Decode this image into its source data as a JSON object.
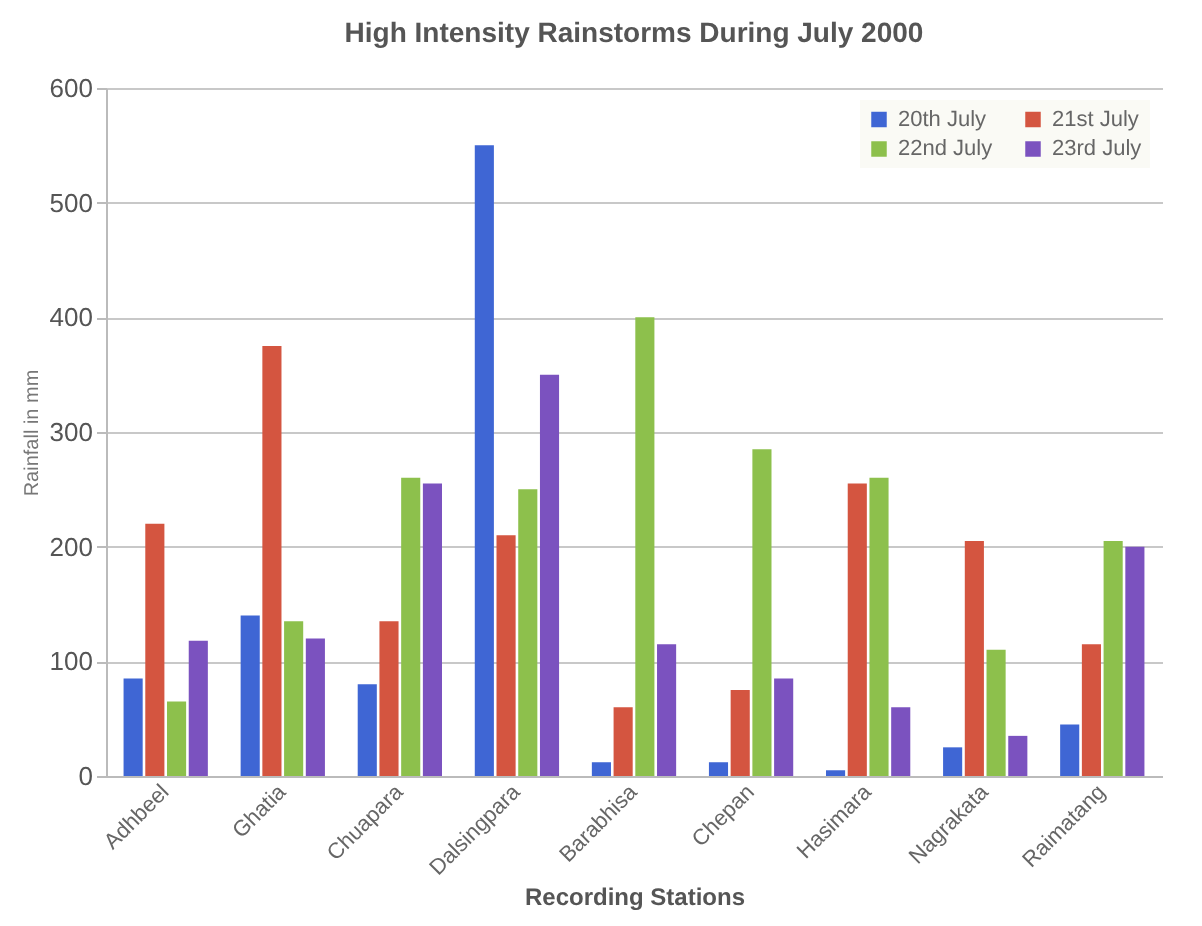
{
  "chart_data": {
    "type": "bar",
    "title": "High Intensity Rainstorms During July 2000",
    "xlabel": "Recording Stations",
    "ylabel": "Rainfall in mm",
    "categories": [
      "Adhbeel",
      "Ghatia",
      "Chuapara",
      "Dalsingpara",
      "Barabhisa",
      "Chepan",
      "Hasimara",
      "Nagrakata",
      "Raimatang"
    ],
    "series": [
      {
        "name": "20th July",
        "color": "#3f66d4",
        "values": [
          85,
          140,
          80,
          550,
          12,
          12,
          5,
          25,
          45
        ]
      },
      {
        "name": "21st July",
        "color": "#d45540",
        "values": [
          220,
          375,
          135,
          210,
          60,
          75,
          255,
          205,
          115
        ]
      },
      {
        "name": "22nd July",
        "color": "#8dc04c",
        "values": [
          65,
          135,
          260,
          250,
          400,
          285,
          260,
          110,
          205
        ]
      },
      {
        "name": "23rd July",
        "color": "#7b52bf",
        "values": [
          118,
          120,
          255,
          350,
          115,
          85,
          60,
          35,
          200
        ]
      }
    ],
    "ylim": [
      0,
      600
    ],
    "yticks": [
      0,
      100,
      200,
      300,
      400,
      500,
      600
    ],
    "grid": "y",
    "legend": "top right"
  }
}
